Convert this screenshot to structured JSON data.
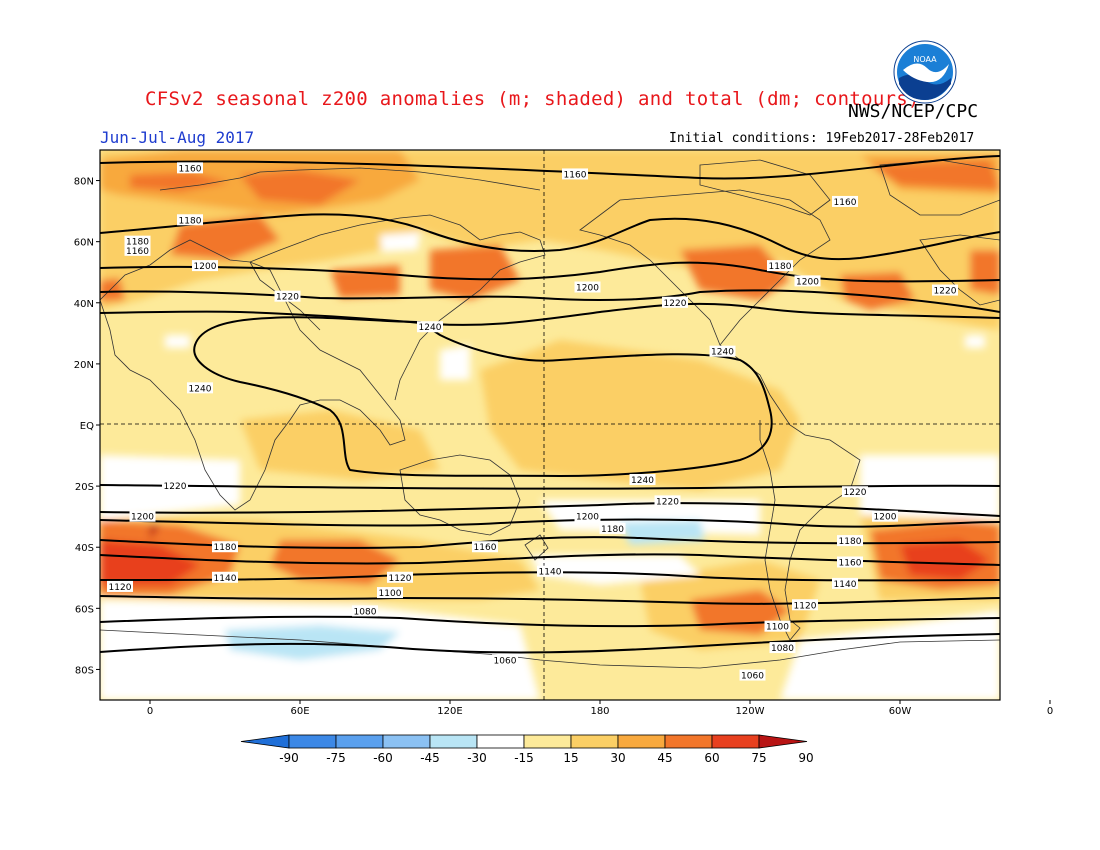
{
  "title": "CFSv2 seasonal z200 anomalies (m; shaded) and total (dm; contours)",
  "agency": "NWS/NCEP/CPC",
  "logo_text": "NOAA",
  "season": "Jun-Jul-Aug 2017",
  "initial_conditions": "Initial conditions: 19Feb2017-28Feb2017",
  "lat_labels": [
    "80N",
    "60N",
    "40N",
    "20N",
    "EQ",
    "20S",
    "40S",
    "60S",
    "80S"
  ],
  "lon_labels": [
    "0",
    "60E",
    "120E",
    "180",
    "120W",
    "60W",
    "0"
  ],
  "colorbar": {
    "ticks": [
      "-90",
      "-75",
      "-60",
      "-45",
      "-30",
      "-15",
      "15",
      "30",
      "45",
      "60",
      "75",
      "90"
    ],
    "colors": [
      "#1f6fd8",
      "#3c88e6",
      "#5aa0ee",
      "#8bc1f3",
      "#b9e5f5",
      "#ffffff",
      "#fdea9a",
      "#fbcf65",
      "#f8a93e",
      "#f2762a",
      "#e8401f",
      "#b81414"
    ]
  },
  "contour_labels": [
    {
      "text": "1160",
      "lon": 16,
      "lat": 84
    },
    {
      "text": "1160",
      "lon": 170,
      "lat": 82
    },
    {
      "text": "1160",
      "lon": -82,
      "lat": 73
    },
    {
      "text": "1180",
      "lon": 16,
      "lat": 67
    },
    {
      "text": "1180",
      "lon": -5,
      "lat": 60
    },
    {
      "text": "1180",
      "lon": -108,
      "lat": 52
    },
    {
      "text": "1160",
      "lon": -5,
      "lat": 57
    },
    {
      "text": "1200",
      "lon": 22,
      "lat": 52
    },
    {
      "text": "1200",
      "lon": 175,
      "lat": 45
    },
    {
      "text": "1200",
      "lon": -97,
      "lat": 47
    },
    {
      "text": "1220",
      "lon": -42,
      "lat": 44
    },
    {
      "text": "1220",
      "lon": 55,
      "lat": 42
    },
    {
      "text": "1220",
      "lon": -150,
      "lat": 40
    },
    {
      "text": "1240",
      "lon": 112,
      "lat": 32
    },
    {
      "text": "1240",
      "lon": -131,
      "lat": 24
    },
    {
      "text": "1240",
      "lon": 20,
      "lat": 12
    },
    {
      "text": "1240",
      "lon": -163,
      "lat": -18
    },
    {
      "text": "1220",
      "lon": 10,
      "lat": -20
    },
    {
      "text": "1220",
      "lon": -153,
      "lat": -25
    },
    {
      "text": "1220",
      "lon": -78,
      "lat": -22
    },
    {
      "text": "1200",
      "lon": -3,
      "lat": -30
    },
    {
      "text": "1200",
      "lon": 175,
      "lat": -30
    },
    {
      "text": "1200",
      "lon": -66,
      "lat": -30
    },
    {
      "text": "1180",
      "lon": -175,
      "lat": -34
    },
    {
      "text": "1180",
      "lon": -80,
      "lat": -38
    },
    {
      "text": "1180",
      "lon": 30,
      "lat": -40
    },
    {
      "text": "1160",
      "lon": 134,
      "lat": -40
    },
    {
      "text": "1160",
      "lon": -80,
      "lat": -45
    },
    {
      "text": "1140",
      "lon": 30,
      "lat": -50
    },
    {
      "text": "1140",
      "lon": 160,
      "lat": -48
    },
    {
      "text": "1140",
      "lon": -82,
      "lat": -52
    },
    {
      "text": "1120",
      "lon": -12,
      "lat": -53
    },
    {
      "text": "1120",
      "lon": 100,
      "lat": -50
    },
    {
      "text": "1120",
      "lon": -98,
      "lat": -59
    },
    {
      "text": "1100",
      "lon": 96,
      "lat": -55
    },
    {
      "text": "1100",
      "lon": -109,
      "lat": -66
    },
    {
      "text": "1080",
      "lon": 86,
      "lat": -61
    },
    {
      "text": "1080",
      "lon": -107,
      "lat": -73
    },
    {
      "text": "1060",
      "lon": 142,
      "lat": -77
    },
    {
      "text": "1060",
      "lon": -119,
      "lat": -82
    }
  ]
}
